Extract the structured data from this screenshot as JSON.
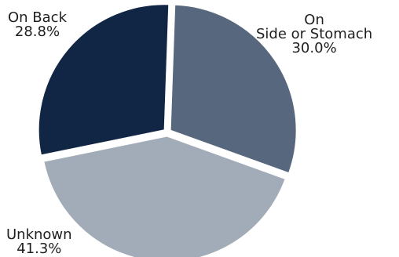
{
  "chart_data": {
    "type": "pie",
    "slices": [
      {
        "label_lines": [
          "On",
          "Side or Stomach"
        ],
        "value": 30.0,
        "value_label": "30.0%",
        "color": "#56677e"
      },
      {
        "label_lines": [
          "Unknown"
        ],
        "value": 41.3,
        "value_label": "41.3%",
        "color": "#a2acb8"
      },
      {
        "label_lines": [
          "On Back"
        ],
        "value": 28.8,
        "value_label": "28.8%",
        "color": "#112645"
      }
    ],
    "start_angle_deg": 2,
    "direction": "clockwise",
    "legend": "none",
    "separator_color": "#ffffff"
  }
}
